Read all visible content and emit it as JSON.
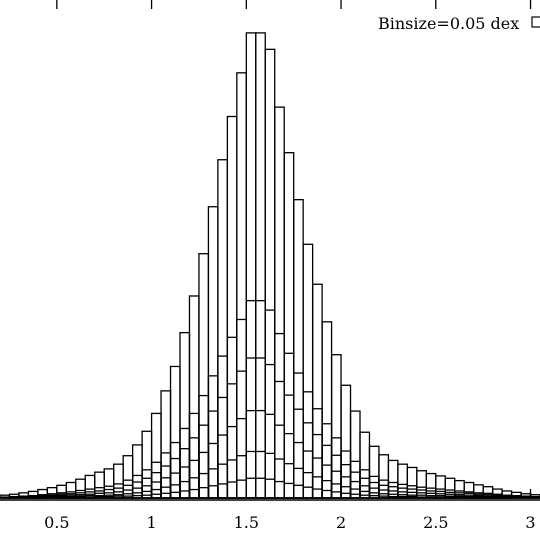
{
  "chart_data": {
    "type": "bar",
    "legend": {
      "text": "Binsize=0.05 dex",
      "placement": "top-right"
    },
    "xlim": [
      0.2,
      3.05
    ],
    "ylim": [
      0,
      1.06
    ],
    "grid": false,
    "bin_width": 0.05,
    "x_ticks": [
      "0.5",
      "1",
      "1.5",
      "2",
      "2.5",
      "3"
    ],
    "series": [
      {
        "x": [
          0.225,
          0.275,
          0.325,
          0.375,
          0.425,
          0.475,
          0.525,
          0.575,
          0.625,
          0.675,
          0.725,
          0.775,
          0.825,
          0.875,
          0.925,
          0.975,
          1.025,
          1.075,
          1.125,
          1.175,
          1.225,
          1.275,
          1.325,
          1.375,
          1.425,
          1.475,
          1.525,
          1.575,
          1.625,
          1.675,
          1.725,
          1.775,
          1.825,
          1.875,
          1.925,
          1.975,
          2.025,
          2.075,
          2.125,
          2.175,
          2.225,
          2.275,
          2.325,
          2.375,
          2.425,
          2.475,
          2.525,
          2.575,
          2.625,
          2.675,
          2.725,
          2.775,
          2.825,
          2.875,
          2.925,
          2.975,
          3.025
        ],
        "values": [
          0.006,
          0.008,
          0.011,
          0.014,
          0.018,
          0.022,
          0.027,
          0.033,
          0.04,
          0.048,
          0.055,
          0.062,
          0.072,
          0.09,
          0.113,
          0.142,
          0.18,
          0.228,
          0.28,
          0.352,
          0.43,
          0.52,
          0.62,
          0.72,
          0.812,
          0.905,
          0.99,
          0.99,
          0.955,
          0.832,
          0.735,
          0.635,
          0.54,
          0.455,
          0.375,
          0.305,
          0.24,
          0.185,
          0.14,
          0.11,
          0.092,
          0.08,
          0.072,
          0.065,
          0.058,
          0.052,
          0.047,
          0.042,
          0.037,
          0.033,
          0.028,
          0.024,
          0.019,
          0.015,
          0.012,
          0.009,
          0.007
        ]
      },
      {
        "x": [
          0.225,
          0.275,
          0.325,
          0.375,
          0.425,
          0.475,
          0.525,
          0.575,
          0.625,
          0.675,
          0.725,
          0.775,
          0.825,
          0.875,
          0.925,
          0.975,
          1.025,
          1.075,
          1.125,
          1.175,
          1.225,
          1.275,
          1.325,
          1.375,
          1.425,
          1.475,
          1.525,
          1.575,
          1.625,
          1.675,
          1.725,
          1.775,
          1.825,
          1.875,
          1.925,
          1.975,
          2.025,
          2.075,
          2.125,
          2.175,
          2.225,
          2.275,
          2.325,
          2.375,
          2.425,
          2.475,
          2.525,
          2.575,
          2.625,
          2.675,
          2.725,
          2.775,
          2.825,
          2.875,
          2.925,
          2.975,
          3.025
        ],
        "values": [
          0.002,
          0.003,
          0.004,
          0.005,
          0.007,
          0.009,
          0.011,
          0.013,
          0.016,
          0.019,
          0.022,
          0.025,
          0.03,
          0.038,
          0.048,
          0.06,
          0.076,
          0.096,
          0.118,
          0.148,
          0.18,
          0.218,
          0.26,
          0.302,
          0.342,
          0.38,
          0.42,
          0.42,
          0.4,
          0.35,
          0.308,
          0.266,
          0.226,
          0.19,
          0.158,
          0.128,
          0.1,
          0.078,
          0.06,
          0.046,
          0.038,
          0.033,
          0.029,
          0.026,
          0.023,
          0.021,
          0.019,
          0.017,
          0.015,
          0.013,
          0.011,
          0.01,
          0.008,
          0.006,
          0.005,
          0.004,
          0.003
        ]
      },
      {
        "x": [
          0.225,
          0.275,
          0.325,
          0.375,
          0.425,
          0.475,
          0.525,
          0.575,
          0.625,
          0.675,
          0.725,
          0.775,
          0.825,
          0.875,
          0.925,
          0.975,
          1.025,
          1.075,
          1.125,
          1.175,
          1.225,
          1.275,
          1.325,
          1.375,
          1.425,
          1.475,
          1.525,
          1.575,
          1.625,
          1.675,
          1.725,
          1.775,
          1.825,
          1.875,
          1.925,
          1.975,
          2.025,
          2.075,
          2.125,
          2.175,
          2.225,
          2.275,
          2.325,
          2.375,
          2.425,
          2.475,
          2.525,
          2.575,
          2.625,
          2.675,
          2.725,
          2.775,
          2.825,
          2.875,
          2.925,
          2.975,
          3.025
        ],
        "values": [
          0.001,
          0.002,
          0.003,
          0.004,
          0.005,
          0.006,
          0.008,
          0.009,
          0.011,
          0.013,
          0.015,
          0.018,
          0.021,
          0.027,
          0.034,
          0.042,
          0.054,
          0.068,
          0.084,
          0.105,
          0.128,
          0.155,
          0.185,
          0.214,
          0.243,
          0.27,
          0.298,
          0.298,
          0.284,
          0.248,
          0.219,
          0.189,
          0.16,
          0.135,
          0.112,
          0.091,
          0.071,
          0.055,
          0.042,
          0.033,
          0.027,
          0.024,
          0.021,
          0.019,
          0.017,
          0.015,
          0.014,
          0.012,
          0.011,
          0.01,
          0.008,
          0.007,
          0.006,
          0.004,
          0.004,
          0.003,
          0.002
        ]
      },
      {
        "x": [
          0.225,
          0.275,
          0.325,
          0.375,
          0.425,
          0.475,
          0.525,
          0.575,
          0.625,
          0.675,
          0.725,
          0.775,
          0.825,
          0.875,
          0.925,
          0.975,
          1.025,
          1.075,
          1.125,
          1.175,
          1.225,
          1.275,
          1.325,
          1.375,
          1.425,
          1.475,
          1.525,
          1.575,
          1.625,
          1.675,
          1.725,
          1.775,
          1.825,
          1.875,
          1.925,
          1.975,
          2.025,
          2.075,
          2.125,
          2.175,
          2.225,
          2.275,
          2.325,
          2.375,
          2.425,
          2.475,
          2.525,
          2.575,
          2.625,
          2.675,
          2.725,
          2.775,
          2.825,
          2.875,
          2.925,
          2.975,
          3.025
        ],
        "values": [
          0.001,
          0.001,
          0.002,
          0.002,
          0.003,
          0.004,
          0.005,
          0.006,
          0.007,
          0.008,
          0.01,
          0.011,
          0.013,
          0.017,
          0.021,
          0.026,
          0.034,
          0.043,
          0.053,
          0.066,
          0.08,
          0.097,
          0.116,
          0.134,
          0.152,
          0.169,
          0.186,
          0.186,
          0.178,
          0.155,
          0.137,
          0.118,
          0.1,
          0.085,
          0.07,
          0.057,
          0.045,
          0.035,
          0.026,
          0.021,
          0.017,
          0.015,
          0.013,
          0.012,
          0.011,
          0.01,
          0.009,
          0.008,
          0.007,
          0.006,
          0.005,
          0.004,
          0.004,
          0.003,
          0.002,
          0.002,
          0.001
        ]
      },
      {
        "x": [
          0.225,
          0.275,
          0.325,
          0.375,
          0.425,
          0.475,
          0.525,
          0.575,
          0.625,
          0.675,
          0.725,
          0.775,
          0.825,
          0.875,
          0.925,
          0.975,
          1.025,
          1.075,
          1.125,
          1.175,
          1.225,
          1.275,
          1.325,
          1.375,
          1.425,
          1.475,
          1.525,
          1.575,
          1.625,
          1.675,
          1.725,
          1.775,
          1.825,
          1.875,
          1.925,
          1.975,
          2.025,
          2.075,
          2.125,
          2.175,
          2.225,
          2.275,
          2.325,
          2.375,
          2.425,
          2.475,
          2.525,
          2.575,
          2.625,
          2.675,
          2.725,
          2.775,
          2.825,
          2.875,
          2.925,
          2.975,
          3.025
        ],
        "values": [
          0.0,
          0.001,
          0.001,
          0.001,
          0.002,
          0.002,
          0.003,
          0.003,
          0.004,
          0.005,
          0.005,
          0.006,
          0.007,
          0.009,
          0.011,
          0.014,
          0.018,
          0.023,
          0.028,
          0.035,
          0.043,
          0.052,
          0.062,
          0.072,
          0.081,
          0.09,
          0.099,
          0.099,
          0.095,
          0.083,
          0.073,
          0.063,
          0.054,
          0.045,
          0.037,
          0.03,
          0.024,
          0.019,
          0.014,
          0.011,
          0.009,
          0.008,
          0.007,
          0.006,
          0.006,
          0.005,
          0.005,
          0.004,
          0.004,
          0.003,
          0.003,
          0.002,
          0.002,
          0.002,
          0.001,
          0.001,
          0.001
        ]
      },
      {
        "x": [
          0.225,
          0.275,
          0.325,
          0.375,
          0.425,
          0.475,
          0.525,
          0.575,
          0.625,
          0.675,
          0.725,
          0.775,
          0.825,
          0.875,
          0.925,
          0.975,
          1.025,
          1.075,
          1.125,
          1.175,
          1.225,
          1.275,
          1.325,
          1.375,
          1.425,
          1.475,
          1.525,
          1.575,
          1.625,
          1.675,
          1.725,
          1.775,
          1.825,
          1.875,
          1.925,
          1.975,
          2.025,
          2.075,
          2.125,
          2.175,
          2.225,
          2.275,
          2.325,
          2.375,
          2.425,
          2.475,
          2.525,
          2.575,
          2.625,
          2.675,
          2.725,
          2.775,
          2.825,
          2.875,
          2.925,
          2.975,
          3.025
        ],
        "values": [
          0.0,
          0.0,
          0.0,
          0.001,
          0.001,
          0.001,
          0.001,
          0.002,
          0.002,
          0.002,
          0.003,
          0.003,
          0.004,
          0.004,
          0.005,
          0.006,
          0.008,
          0.01,
          0.012,
          0.015,
          0.018,
          0.022,
          0.026,
          0.03,
          0.034,
          0.038,
          0.042,
          0.042,
          0.04,
          0.035,
          0.031,
          0.027,
          0.023,
          0.019,
          0.016,
          0.013,
          0.01,
          0.008,
          0.006,
          0.005,
          0.004,
          0.003,
          0.003,
          0.003,
          0.002,
          0.002,
          0.002,
          0.002,
          0.002,
          0.001,
          0.001,
          0.001,
          0.001,
          0.001,
          0.0,
          0.0,
          0.0
        ]
      }
    ]
  }
}
